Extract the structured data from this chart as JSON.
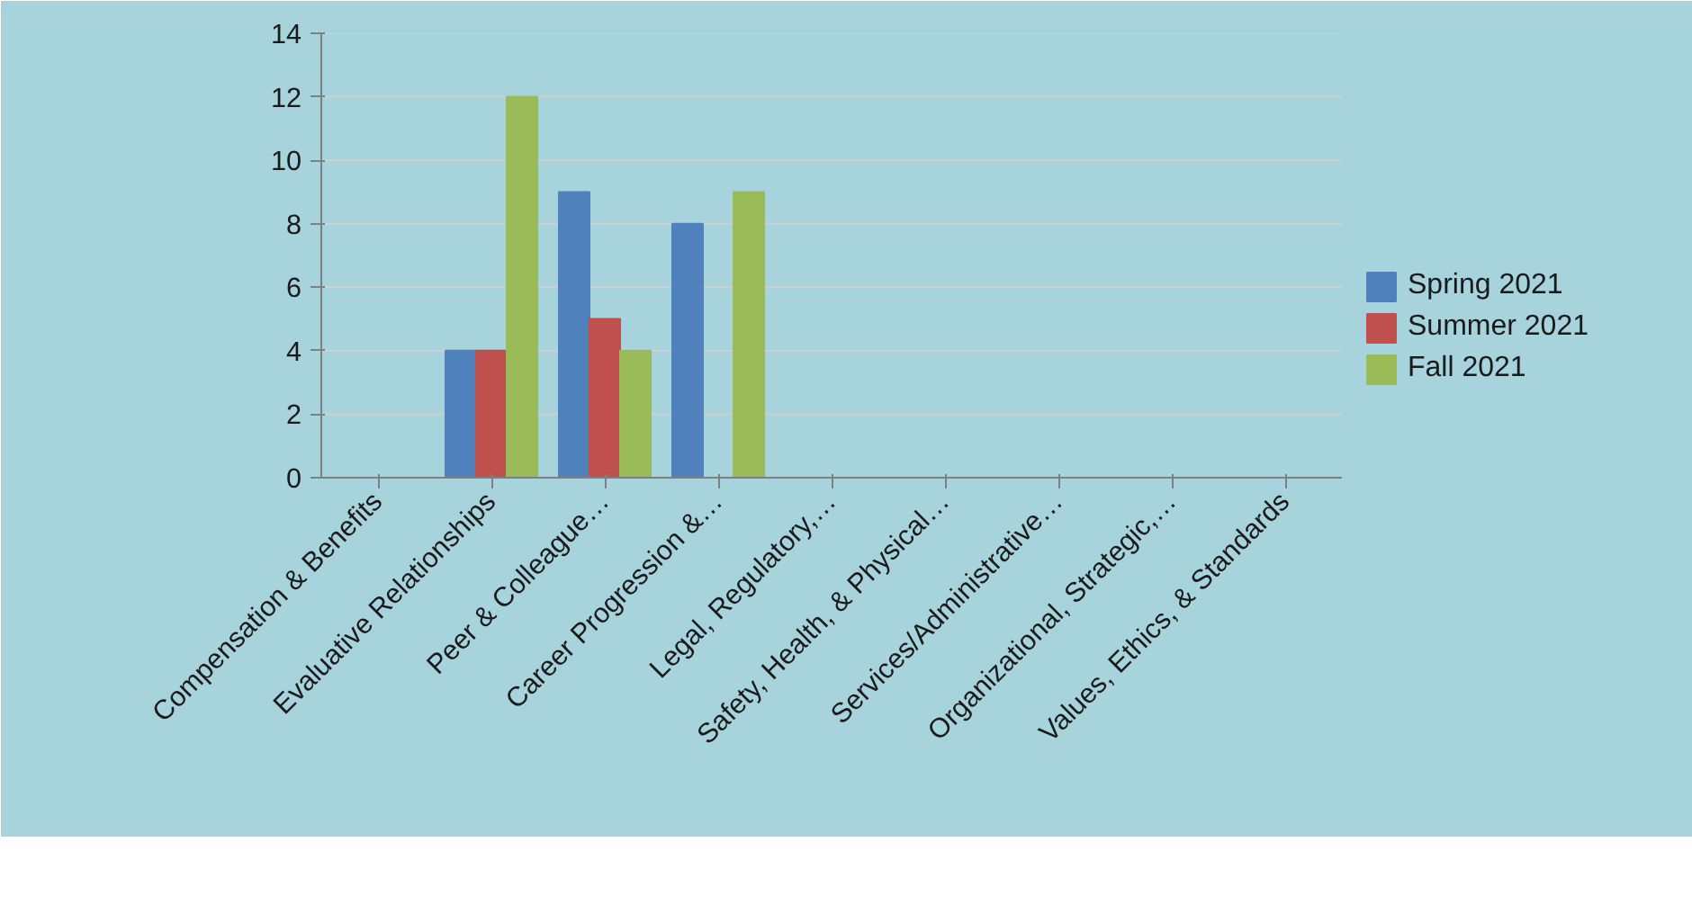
{
  "chart_data": {
    "type": "bar",
    "categories": [
      "Compensation & Benefits",
      "Evaluative Relationships",
      "Peer & Colleague…",
      "Career Progression &…",
      "Legal, Regulatory,…",
      "Safety, Health, & Physical…",
      "Services/Administrative…",
      "Organizational, Strategic,…",
      "Values, Ethics, & Standards"
    ],
    "series": [
      {
        "name": "Spring 2021",
        "color": "#4f81bd",
        "values": [
          0,
          4,
          9,
          8,
          0,
          0,
          0,
          0,
          0
        ]
      },
      {
        "name": "Summer 2021",
        "color": "#c0504d",
        "values": [
          0,
          4,
          5,
          0,
          0,
          0,
          0,
          0,
          0
        ]
      },
      {
        "name": "Fall 2021",
        "color": "#9bbb59",
        "values": [
          0,
          12,
          4,
          9,
          0,
          0,
          0,
          0,
          0
        ]
      }
    ],
    "ylim": [
      0,
      14
    ],
    "yticks": [
      0,
      2,
      4,
      6,
      8,
      10,
      12,
      14
    ],
    "grid": "y",
    "legend": "right"
  }
}
